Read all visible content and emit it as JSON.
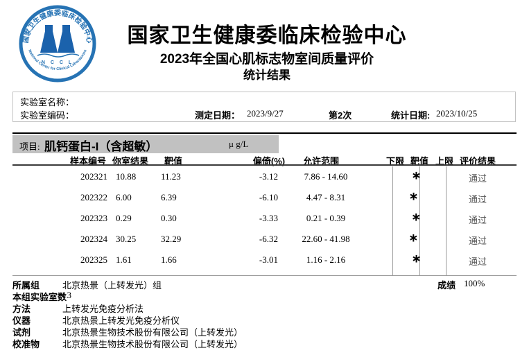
{
  "logo": {
    "top_text": "国家卫生健康委临床检验中心",
    "bottom_text": "National Center for Clinical Laboratories",
    "acronym": "N C C L",
    "color": "#2673b4",
    "flask_color": "#1b62ac"
  },
  "header": {
    "title": "国家卫生健康委临床检验中心",
    "subtitle": "2023年全国心肌标志物室间质量评价",
    "subtitle2": "统计结果"
  },
  "info_bar": {
    "lab_name_label": "实验室名称：",
    "lab_name_value": "",
    "lab_code_label": "实验室编码：",
    "lab_code_value": "",
    "test_date_label": "测定日期：",
    "test_date_value": "2023/9/27",
    "round": "第2次",
    "stat_date_label": "统计日期:",
    "stat_date_value": "2023/10/25"
  },
  "project": {
    "label": "项目:",
    "name": "肌钙蛋白-I（含超敏）",
    "unit": "μ g/L"
  },
  "table": {
    "headers": [
      "样本编号",
      "你室结果",
      "靶值",
      "偏倚(%)",
      "允许范围",
      "下限",
      "靶值",
      "上限",
      "评价结果"
    ],
    "marker_glyph": "∗",
    "rows": [
      {
        "sample": "202321",
        "result": "10.88",
        "target": "11.23",
        "bias": "-3.12",
        "range": "7.86 - 14.60",
        "marker_pos": 44.8,
        "eval": "通过"
      },
      {
        "sample": "202322",
        "result": "6.00",
        "target": "6.39",
        "bias": "-6.10",
        "range": "4.47 - 8.31",
        "marker_pos": 39.8,
        "eval": "通过"
      },
      {
        "sample": "202323",
        "result": "0.29",
        "target": "0.30",
        "bias": "-3.33",
        "range": "0.21 - 0.39",
        "marker_pos": 44.4,
        "eval": "通过"
      },
      {
        "sample": "202324",
        "result": "30.25",
        "target": "32.29",
        "bias": "-6.32",
        "range": "22.60 - 41.98",
        "marker_pos": 39.5,
        "eval": "通过"
      },
      {
        "sample": "202325",
        "result": "1.61",
        "target": "1.66",
        "bias": "-3.01",
        "range": "1.16 - 2.16",
        "marker_pos": 45.0,
        "eval": "通过"
      }
    ]
  },
  "footer": {
    "rows": [
      {
        "label": "所属组",
        "value": "北京热景（上转发光）组"
      },
      {
        "label": "本组实验室数",
        "value": "13"
      },
      {
        "label": "方法",
        "value": "上转发光免疫分析法"
      },
      {
        "label": "仪器",
        "value": "北京热景上转发光免疫分析仪"
      },
      {
        "label": "试剂",
        "value": "北京热景生物技术股份有限公司（上转发光）"
      },
      {
        "label": "校准物",
        "value": "北京热景生物技术股份有限公司（上转发光）"
      }
    ],
    "score_label": "成绩",
    "score_value": "100%"
  }
}
